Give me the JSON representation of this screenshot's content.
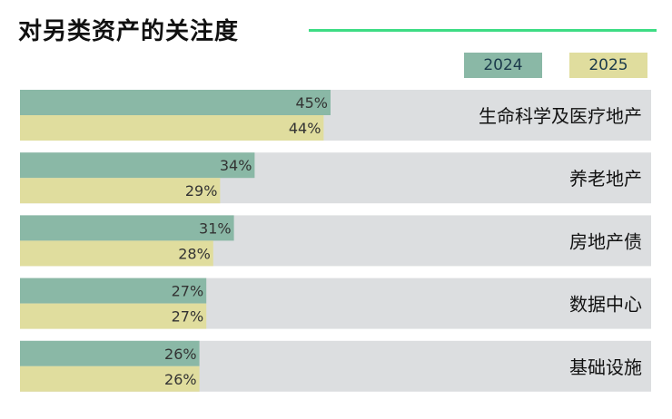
{
  "chart_data": {
    "type": "bar",
    "orientation": "horizontal",
    "title": "对另类资产的关注度",
    "categories": [
      "生命科学及医疗地产",
      "养老地产",
      "房地产债",
      "数据中心",
      "基础设施"
    ],
    "series": [
      {
        "name": "2024",
        "values": [
          45,
          34,
          31,
          27,
          26
        ],
        "labels": [
          "45%",
          "34%",
          "31%",
          "27%",
          "26%"
        ],
        "color": "#8ab8a6"
      },
      {
        "name": "2025",
        "values": [
          44,
          29,
          28,
          27,
          26
        ],
        "labels": [
          "44%",
          "29%",
          "28%",
          "27%",
          "26%"
        ],
        "color": "#e0dd9e"
      }
    ],
    "unit": "%",
    "xlim": [
      0,
      100
    ],
    "legend": "top-right",
    "grid": false,
    "colors": {
      "track": "#dcdee0",
      "label_text": "#333333",
      "category_text": "#111111",
      "accent": "#3ddc84"
    }
  }
}
